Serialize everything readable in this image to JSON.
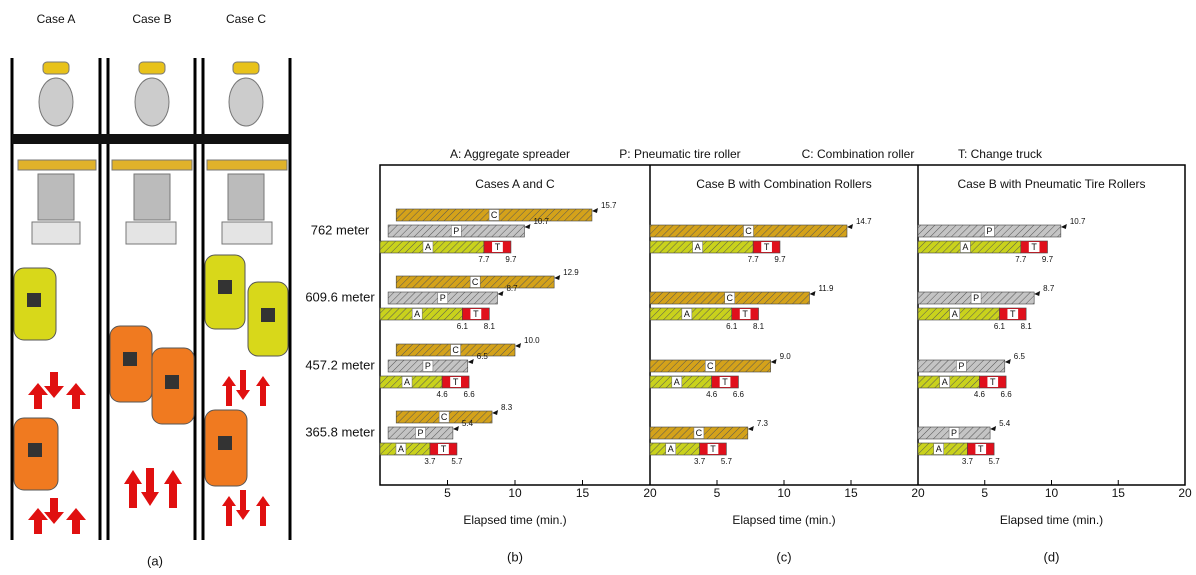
{
  "diagram": {
    "cases": [
      "Case A",
      "Case B",
      "Case C"
    ],
    "label": "(a)"
  },
  "legend": [
    "A: Aggregate spreader",
    "P: Pneumatic tire roller",
    "C: Combination roller",
    "T: Change truck"
  ],
  "chart_data": [
    {
      "type": "range-bar",
      "title": "Cases A and C",
      "label": "(b)",
      "xlabel": "Elapsed time (min.)",
      "categories": [
        "762 meter",
        "609.6 meter",
        "457.2 meter",
        "365.8 meter"
      ],
      "xlim": [
        0,
        20
      ],
      "xticks": [
        5,
        10,
        15,
        20
      ],
      "series": [
        {
          "name": "C",
          "color": "#d4a21a",
          "start": [
            1.2,
            1.2,
            1.2,
            1.2
          ],
          "values": [
            15.7,
            12.9,
            10.0,
            8.3
          ],
          "value_labels": [
            "15.7",
            "12.9",
            "10.0",
            "8.3"
          ]
        },
        {
          "name": "P",
          "color": "#c4c4c4",
          "start": [
            0.6,
            0.6,
            0.6,
            0.6
          ],
          "values": [
            10.7,
            8.7,
            6.5,
            5.4
          ]
        },
        {
          "name": "A",
          "color": "#c9d21c",
          "start": [
            0,
            0,
            0,
            0
          ],
          "values": [
            7.7,
            6.1,
            4.6,
            3.7
          ]
        },
        {
          "name": "T",
          "color": "#e0101c",
          "start": [
            7.7,
            6.1,
            4.6,
            3.7
          ],
          "values": [
            9.7,
            8.1,
            6.6,
            5.7
          ]
        }
      ]
    },
    {
      "type": "range-bar",
      "title": "Case B with Combination Rollers",
      "label": "(c)",
      "xlabel": "Elapsed time (min.)",
      "categories": [
        null,
        null,
        null,
        null
      ],
      "xlim": [
        0,
        20
      ],
      "xticks": [
        5,
        10,
        15,
        20
      ],
      "series": [
        {
          "name": "C",
          "color": "#d4a21a",
          "start": [
            0,
            0,
            0,
            0
          ],
          "values": [
            14.7,
            11.9,
            9.0,
            7.3
          ],
          "value_labels": [
            "14.7",
            "11.9",
            "9.0",
            "7.3"
          ]
        },
        {
          "name": "A",
          "color": "#c9d21c",
          "start": [
            0,
            0,
            0,
            0
          ],
          "values": [
            7.7,
            6.1,
            4.6,
            3.7
          ]
        },
        {
          "name": "T",
          "color": "#e0101c",
          "start": [
            7.7,
            6.1,
            4.6,
            3.7
          ],
          "values": [
            9.7,
            8.1,
            6.6,
            5.7
          ]
        }
      ]
    },
    {
      "type": "range-bar",
      "title": "Case B with Pneumatic Tire Rollers",
      "label": "(d)",
      "xlabel": "Elapsed time (min.)",
      "categories": [
        null,
        null,
        null,
        null
      ],
      "xlim": [
        0,
        20
      ],
      "xticks": [
        5,
        10,
        15,
        20
      ],
      "series": [
        {
          "name": "P",
          "color": "#c4c4c4",
          "start": [
            0,
            0,
            0,
            0
          ],
          "values": [
            10.7,
            8.7,
            6.5,
            5.4
          ]
        },
        {
          "name": "A",
          "color": "#c9d21c",
          "start": [
            0,
            0,
            0,
            0
          ],
          "values": [
            7.7,
            6.1,
            4.6,
            3.7
          ]
        },
        {
          "name": "T",
          "color": "#e0101c",
          "start": [
            7.7,
            6.1,
            4.6,
            3.7
          ],
          "values": [
            9.7,
            8.1,
            6.6,
            5.7
          ]
        }
      ]
    }
  ]
}
